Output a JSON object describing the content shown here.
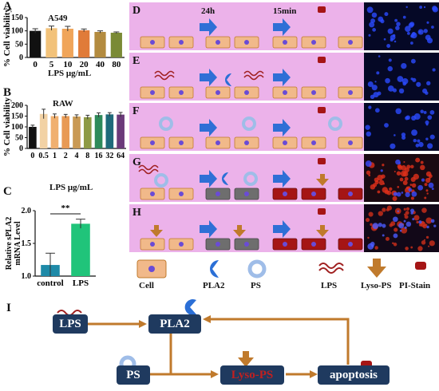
{
  "panels": {
    "A": {
      "label": "A",
      "cell_line": "A549",
      "xlabel": "LPS μg/mL",
      "ylabel": "% Cell viability"
    },
    "B": {
      "label": "B",
      "cell_line": "RAW",
      "xlabel": "LPS μg/mL",
      "ylabel": "% Cell viability"
    },
    "C": {
      "label": "C",
      "ylabel": "Relative sPLA2 mRNA Level",
      "significance": "**"
    }
  },
  "chart_data": [
    {
      "type": "bar",
      "title": "A549",
      "categories": [
        "0",
        "5",
        "10",
        "20",
        "40",
        "80"
      ],
      "values": [
        100,
        110,
        108,
        102,
        96,
        93
      ],
      "errors": [
        8,
        8,
        9,
        5,
        4,
        3
      ],
      "colors": [
        "#111111",
        "#f2c27a",
        "#f0a55a",
        "#e07b39",
        "#b38b3f",
        "#7a8a35"
      ],
      "xlabel": "LPS μg/mL",
      "ylabel": "% Cell viability",
      "ylim": [
        0,
        150
      ],
      "yticks": [
        0,
        50,
        100,
        150
      ]
    },
    {
      "type": "bar",
      "title": "RAW",
      "categories": [
        "0",
        "0.5",
        "1",
        "2",
        "4",
        "8",
        "16",
        "32",
        "64"
      ],
      "values": [
        100,
        160,
        150,
        150,
        148,
        145,
        155,
        158,
        157
      ],
      "errors": [
        8,
        22,
        10,
        8,
        8,
        9,
        10,
        8,
        10
      ],
      "colors": [
        "#111111",
        "#f2d2a5",
        "#f0b070",
        "#e89a55",
        "#c99a55",
        "#8e9a45",
        "#2e8a5a",
        "#1f6a7a",
        "#6b3a7a"
      ],
      "xlabel": "LPS μg/mL",
      "ylabel": "% Cell viability",
      "ylim": [
        0,
        200
      ],
      "yticks": [
        0,
        50,
        100,
        150,
        200
      ]
    },
    {
      "type": "bar",
      "categories": [
        "control",
        "LPS"
      ],
      "values": [
        1.17,
        1.8
      ],
      "errors": [
        0.18,
        0.07
      ],
      "colors": [
        "#1e8aa8",
        "#20c47a"
      ],
      "ylabel": "Relative sPLA2 mRNA Level",
      "ylim": [
        1.0,
        2.0
      ],
      "yticks": [
        1.0,
        1.5,
        2.0
      ],
      "annotation": "**"
    }
  ],
  "rows": [
    {
      "label": "D"
    },
    {
      "label": "E"
    },
    {
      "label": "F"
    },
    {
      "label": "G"
    },
    {
      "label": "H"
    }
  ],
  "timeline": {
    "t1": "24h",
    "t2": "15min"
  },
  "legend": {
    "cell": "Cell",
    "pla2": "PLA2",
    "ps": "PS",
    "lps": "LPS",
    "lyso_ps": "Lyso-PS",
    "pi_stain": "PI-Stain"
  },
  "flow": {
    "label": "I",
    "lps": "LPS",
    "pla2": "PLA2",
    "ps": "PS",
    "lyso_ps": "Lyso-PS",
    "apoptosis": "apoptosis"
  },
  "colors": {
    "panel_bg": "#ecb2ea",
    "cell": "#f1b98a",
    "arrow": "#2f6fd6",
    "dark_box": "#1f3a5f",
    "flow_arrow": "#c07a2c"
  }
}
